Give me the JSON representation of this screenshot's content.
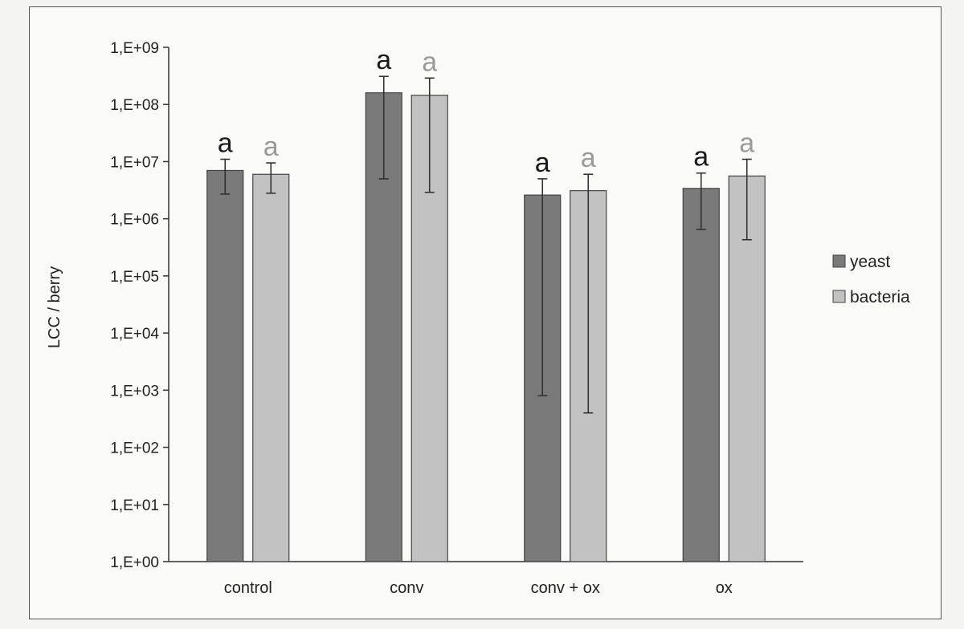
{
  "chart_data": {
    "type": "bar",
    "ylabel": "LCC / berry",
    "xlabel": "",
    "yscale": "log",
    "ylim": [
      1,
      1000000000
    ],
    "yticks": [
      "1,E+00",
      "1,E+01",
      "1,E+02",
      "1,E+03",
      "1,E+04",
      "1,E+05",
      "1,E+06",
      "1,E+07",
      "1,E+08",
      "1,E+09"
    ],
    "categories": [
      "control",
      "conv",
      "conv + ox",
      "ox"
    ],
    "series": [
      {
        "name": "yeast",
        "color": "#7a7a7a",
        "values": [
          7000000,
          160000000,
          2600000,
          3400000
        ],
        "err_low": [
          2700000,
          5000000,
          800,
          650000
        ],
        "err_high": [
          11000000,
          310000000,
          5000000,
          6300000
        ],
        "letters": [
          "a",
          "a",
          "a",
          "a"
        ],
        "letter_color": "#1a1a1a"
      },
      {
        "name": "bacteria",
        "color": "#c2c2c2",
        "values": [
          6000000,
          145000000,
          3100000,
          5600000
        ],
        "err_low": [
          2800000,
          2900000,
          400,
          430000
        ],
        "err_high": [
          9500000,
          290000000,
          6000000,
          11000000
        ],
        "letters": [
          "a",
          "a",
          "a",
          "a"
        ],
        "letter_color": "#9a9a9a"
      }
    ],
    "legend": "right",
    "grid": false
  }
}
